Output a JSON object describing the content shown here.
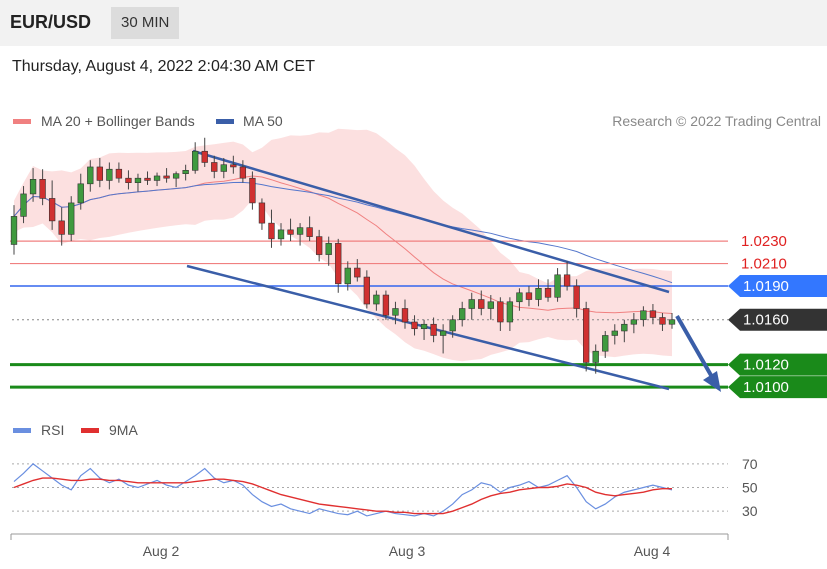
{
  "header": {
    "symbol": "EUR/USD",
    "timeframe": "30 MIN",
    "datetime": "Thursday, August 4, 2022 2:04:30 AM CET"
  },
  "legend": {
    "ma20": "MA 20 + Bollinger Bands",
    "ma50": "MA 50",
    "copyright": "Research © 2022 Trading Central",
    "rsi": "RSI",
    "rsi_ma": "9MA"
  },
  "colors": {
    "bull_candle": "#3f9a3f",
    "bear_candle": "#d03030",
    "bollinger_fill": "#fbd5d5",
    "ma20": "#f08080",
    "ma50": "#5577cc",
    "channel": "#3a5ea8",
    "support": "#1a8a1a",
    "resistance": "#f08080",
    "pivot": "#3366ee",
    "current": "#333333",
    "rsi": "#6a8fe0",
    "rsi_ma": "#e03030"
  },
  "chart_data": [
    {
      "type": "candlestick",
      "title": "EUR/USD",
      "x_ticks": [
        "Aug 2",
        "Aug 3",
        "Aug 4"
      ],
      "ylim": [
        1.0085,
        1.032
      ],
      "horizontal_levels": [
        {
          "value": 1.023,
          "label": "1.0230",
          "kind": "resistance"
        },
        {
          "value": 1.021,
          "label": "1.0210",
          "kind": "resistance"
        },
        {
          "value": 1.019,
          "label": "1.0190",
          "kind": "pivot"
        },
        {
          "value": 1.016,
          "label": "1.0160",
          "kind": "current"
        },
        {
          "value": 1.012,
          "label": "1.0120",
          "kind": "support"
        },
        {
          "value": 1.01,
          "label": "1.0100",
          "kind": "support"
        }
      ],
      "series": [
        {
          "name": "MA 20 + Bollinger Bands",
          "style": "band"
        },
        {
          "name": "MA 50",
          "style": "line"
        }
      ],
      "candles": [
        [
          1.0227,
          1.0262,
          1.0218,
          1.0252
        ],
        [
          1.0252,
          1.0279,
          1.0246,
          1.0272
        ],
        [
          1.0272,
          1.0295,
          1.0265,
          1.0285
        ],
        [
          1.0285,
          1.0294,
          1.0262,
          1.0268
        ],
        [
          1.0268,
          1.0284,
          1.024,
          1.0248
        ],
        [
          1.0248,
          1.026,
          1.0226,
          1.0236
        ],
        [
          1.0236,
          1.027,
          1.023,
          1.0264
        ],
        [
          1.0264,
          1.029,
          1.0258,
          1.0281
        ],
        [
          1.0281,
          1.0302,
          1.0274,
          1.0296
        ],
        [
          1.0296,
          1.0304,
          1.0278,
          1.0284
        ],
        [
          1.0284,
          1.03,
          1.0276,
          1.0294
        ],
        [
          1.0294,
          1.03,
          1.0282,
          1.0286
        ],
        [
          1.0286,
          1.0293,
          1.0276,
          1.0282
        ],
        [
          1.0282,
          1.029,
          1.0274,
          1.0286
        ],
        [
          1.0286,
          1.0292,
          1.028,
          1.0284
        ],
        [
          1.0284,
          1.0291,
          1.0279,
          1.0288
        ],
        [
          1.0288,
          1.0295,
          1.0282,
          1.0286
        ],
        [
          1.0286,
          1.0292,
          1.0278,
          1.029
        ],
        [
          1.029,
          1.0298,
          1.0284,
          1.0293
        ],
        [
          1.0293,
          1.0318,
          1.029,
          1.031
        ],
        [
          1.031,
          1.0322,
          1.0296,
          1.03
        ],
        [
          1.03,
          1.0306,
          1.0286,
          1.0292
        ],
        [
          1.0292,
          1.0304,
          1.0286,
          1.0298
        ],
        [
          1.0298,
          1.0306,
          1.029,
          1.0296
        ],
        [
          1.0296,
          1.0302,
          1.0282,
          1.0286
        ],
        [
          1.0286,
          1.0292,
          1.0258,
          1.0264
        ],
        [
          1.0264,
          1.0268,
          1.024,
          1.0246
        ],
        [
          1.0246,
          1.0258,
          1.0224,
          1.0232
        ],
        [
          1.0232,
          1.0246,
          1.0226,
          1.024
        ],
        [
          1.024,
          1.025,
          1.023,
          1.0236
        ],
        [
          1.0236,
          1.0246,
          1.0226,
          1.0242
        ],
        [
          1.0242,
          1.0252,
          1.023,
          1.0234
        ],
        [
          1.0234,
          1.024,
          1.0212,
          1.0218
        ],
        [
          1.0218,
          1.0234,
          1.0208,
          1.0228
        ],
        [
          1.0228,
          1.0232,
          1.0184,
          1.0192
        ],
        [
          1.0192,
          1.0212,
          1.0186,
          1.0206
        ],
        [
          1.0206,
          1.0214,
          1.0194,
          1.0198
        ],
        [
          1.0198,
          1.0204,
          1.017,
          1.0174
        ],
        [
          1.0174,
          1.0186,
          1.0168,
          1.0182
        ],
        [
          1.0182,
          1.0186,
          1.016,
          1.0164
        ],
        [
          1.0164,
          1.0176,
          1.0156,
          1.017
        ],
        [
          1.017,
          1.0178,
          1.0152,
          1.0158
        ],
        [
          1.0158,
          1.0164,
          1.0146,
          1.0152
        ],
        [
          1.0152,
          1.016,
          1.0142,
          1.0156
        ],
        [
          1.0156,
          1.0162,
          1.014,
          1.0146
        ],
        [
          1.0146,
          1.0156,
          1.013,
          1.015
        ],
        [
          1.015,
          1.0164,
          1.0144,
          1.016
        ],
        [
          1.016,
          1.0176,
          1.0154,
          1.017
        ],
        [
          1.017,
          1.0184,
          1.016,
          1.0178
        ],
        [
          1.0178,
          1.0186,
          1.0164,
          1.017
        ],
        [
          1.017,
          1.0182,
          1.016,
          1.0176
        ],
        [
          1.0176,
          1.018,
          1.015,
          1.0158
        ],
        [
          1.0158,
          1.018,
          1.015,
          1.0176
        ],
        [
          1.0176,
          1.0188,
          1.0168,
          1.0184
        ],
        [
          1.0184,
          1.019,
          1.0172,
          1.0178
        ],
        [
          1.0178,
          1.0196,
          1.0172,
          1.0188
        ],
        [
          1.0188,
          1.0196,
          1.0176,
          1.018
        ],
        [
          1.018,
          1.0206,
          1.0176,
          1.02
        ],
        [
          1.02,
          1.0212,
          1.0186,
          1.019
        ],
        [
          1.019,
          1.0196,
          1.0162,
          1.017
        ],
        [
          1.017,
          1.0176,
          1.0114,
          1.0122
        ],
        [
          1.0122,
          1.0138,
          1.0112,
          1.0132
        ],
        [
          1.0132,
          1.015,
          1.0126,
          1.0146
        ],
        [
          1.0146,
          1.0156,
          1.0138,
          1.015
        ],
        [
          1.015,
          1.016,
          1.014,
          1.0156
        ],
        [
          1.0156,
          1.0166,
          1.0148,
          1.016
        ],
        [
          1.016,
          1.0172,
          1.0154,
          1.0168
        ],
        [
          1.0168,
          1.0174,
          1.0156,
          1.0162
        ],
        [
          1.0162,
          1.0166,
          1.015,
          1.0156
        ],
        [
          1.0156,
          1.0166,
          1.0152,
          1.016
        ]
      ]
    },
    {
      "type": "line",
      "title": "",
      "x_ticks": [
        "Aug 2",
        "Aug 3",
        "Aug 4"
      ],
      "ylim": [
        20,
        80
      ],
      "yticks": [
        70,
        50,
        30
      ],
      "series": [
        {
          "name": "RSI",
          "values": [
            55,
            62,
            70,
            64,
            58,
            52,
            48,
            60,
            66,
            58,
            54,
            57,
            52,
            50,
            53,
            56,
            52,
            50,
            55,
            60,
            66,
            58,
            54,
            56,
            52,
            44,
            38,
            34,
            36,
            32,
            30,
            28,
            32,
            30,
            28,
            27,
            30,
            26,
            28,
            30,
            28,
            27,
            26,
            28,
            26,
            30,
            36,
            44,
            48,
            54,
            52,
            46,
            50,
            52,
            55,
            50,
            52,
            56,
            60,
            50,
            38,
            32,
            36,
            42,
            46,
            48,
            50,
            52,
            50,
            48
          ]
        },
        {
          "name": "9MA",
          "values": [
            50,
            53,
            56,
            58,
            58,
            57,
            56,
            56,
            57,
            57,
            56,
            56,
            55,
            54,
            54,
            54,
            54,
            54,
            54,
            55,
            56,
            57,
            57,
            56,
            55,
            53,
            50,
            47,
            44,
            42,
            40,
            38,
            36,
            35,
            34,
            33,
            32,
            31,
            30,
            30,
            29,
            29,
            28,
            28,
            28,
            28,
            30,
            33,
            36,
            40,
            43,
            45,
            46,
            48,
            49,
            50,
            50,
            51,
            53,
            52,
            50,
            46,
            44,
            43,
            44,
            45,
            46,
            48,
            49,
            49
          ]
        }
      ]
    }
  ]
}
